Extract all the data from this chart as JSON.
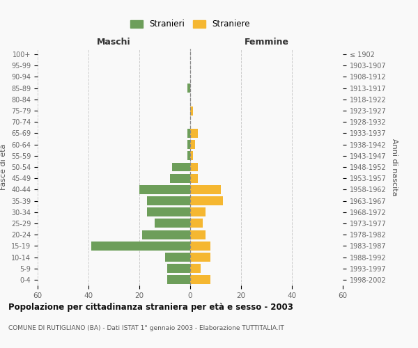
{
  "age_groups": [
    "100+",
    "95-99",
    "90-94",
    "85-89",
    "80-84",
    "75-79",
    "70-74",
    "65-69",
    "60-64",
    "55-59",
    "50-54",
    "45-49",
    "40-44",
    "35-39",
    "30-34",
    "25-29",
    "20-24",
    "15-19",
    "10-14",
    "5-9",
    "0-4"
  ],
  "birth_years": [
    "≤ 1902",
    "1903-1907",
    "1908-1912",
    "1913-1917",
    "1918-1922",
    "1923-1927",
    "1928-1932",
    "1933-1937",
    "1938-1942",
    "1943-1947",
    "1948-1952",
    "1953-1957",
    "1958-1962",
    "1963-1967",
    "1968-1972",
    "1973-1977",
    "1978-1982",
    "1983-1987",
    "1988-1992",
    "1993-1997",
    "1998-2002"
  ],
  "maschi": [
    0,
    0,
    0,
    1,
    0,
    0,
    0,
    1,
    1,
    1,
    7,
    8,
    20,
    17,
    17,
    14,
    19,
    39,
    10,
    9,
    9
  ],
  "femmine": [
    0,
    0,
    0,
    0,
    0,
    1,
    0,
    3,
    2,
    1,
    3,
    3,
    12,
    13,
    6,
    5,
    6,
    8,
    8,
    4,
    8
  ],
  "male_color": "#6d9e5a",
  "female_color": "#f5b731",
  "background_color": "#f9f9f9",
  "grid_color": "#cccccc",
  "title": "Popolazione per cittadinanza straniera per età e sesso - 2003",
  "subtitle": "COMUNE DI RUTIGLIANO (BA) - Dati ISTAT 1° gennaio 2003 - Elaborazione TUTTITALIA.IT",
  "xlabel_left": "Maschi",
  "xlabel_right": "Femmine",
  "ylabel_left": "Fasce di età",
  "ylabel_right": "Anni di nascita",
  "legend_male": "Stranieri",
  "legend_female": "Straniere",
  "xlim": 60,
  "bar_height": 0.8
}
